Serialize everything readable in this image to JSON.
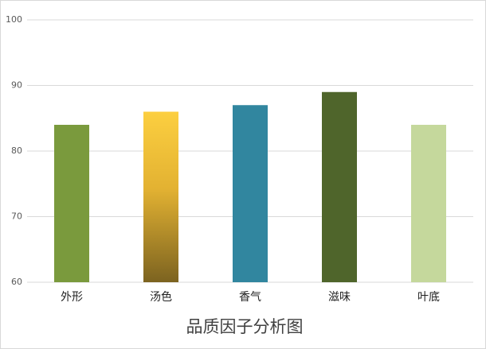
{
  "chart_data": {
    "type": "bar",
    "title": "品质因子分析图",
    "categories": [
      "外形",
      "汤色",
      "香气",
      "滋味",
      "叶底"
    ],
    "values": [
      84,
      86,
      87,
      89,
      84
    ],
    "colors": [
      "#7a9a3d",
      "#fccf40",
      "#31869f",
      "#4f652b",
      "#c5d89c"
    ],
    "ylim": [
      60,
      100
    ],
    "yticks": [
      60,
      70,
      80,
      90,
      100
    ],
    "grid": true
  }
}
